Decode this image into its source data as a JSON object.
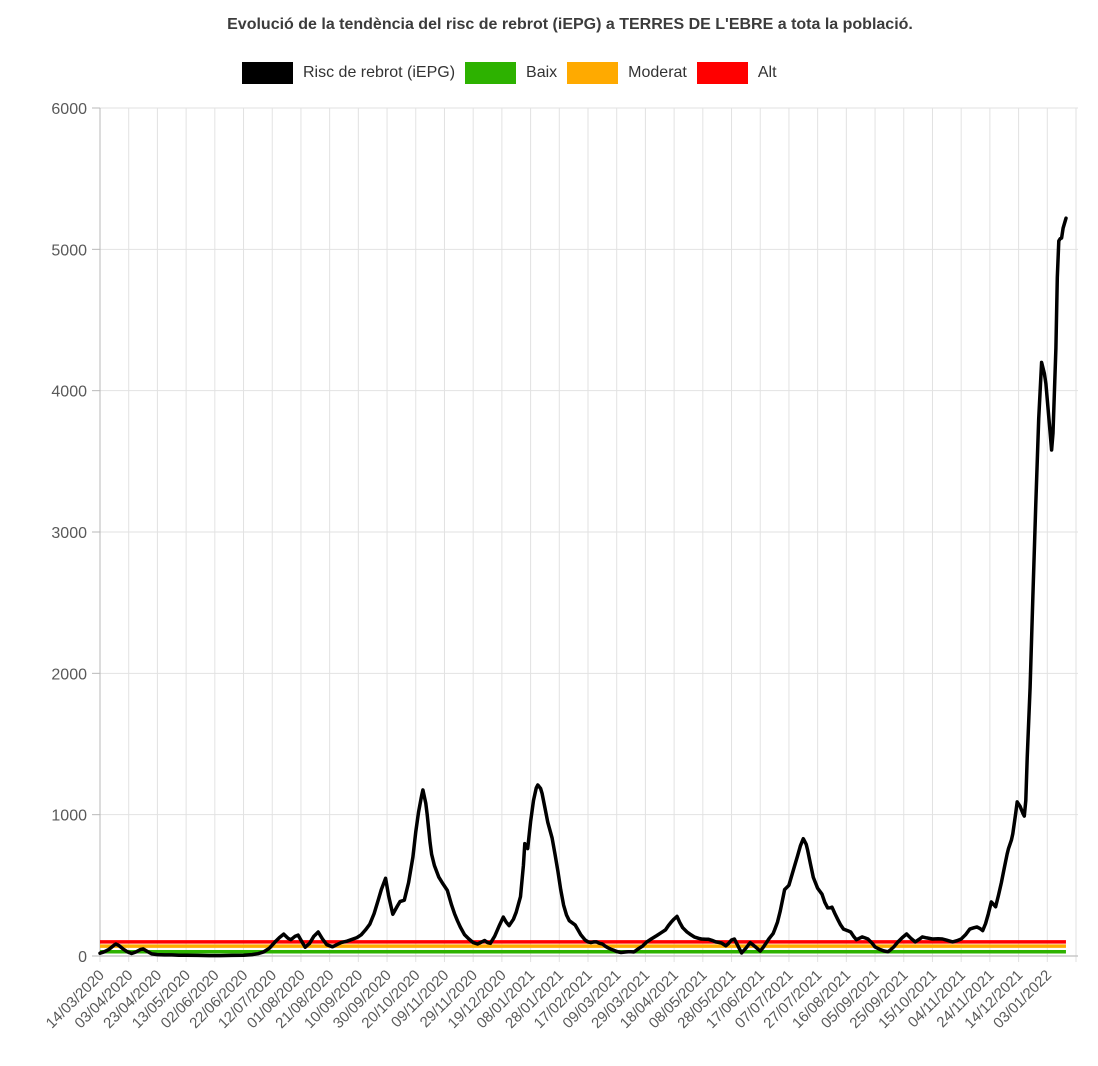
{
  "header": {
    "title": "Evolució de la tendència del risc de rebrot (iEPG) a TERRES DE L'EBRE a tota la població."
  },
  "legend": {
    "items": [
      {
        "label": "Risc de rebrot (iEPG)",
        "color": "#000000"
      },
      {
        "label": "Baix",
        "color": "#2db200"
      },
      {
        "label": "Moderat",
        "color": "#ffaa00"
      },
      {
        "label": "Alt",
        "color": "#ff0000"
      }
    ]
  },
  "chart_data": {
    "type": "line",
    "title": "Evolució de la tendència del risc de rebrot (iEPG) a TERRES DE L'EBRE a tota la població.",
    "xlabel": "",
    "ylabel": "",
    "ylim": [
      0,
      6000
    ],
    "y_ticks": [
      0,
      1000,
      2000,
      3000,
      4000,
      5000,
      6000
    ],
    "grid": true,
    "legend_position": "top",
    "x_tick_interval_days": 20,
    "x_domain_days": [
      0,
      680
    ],
    "x_tick_labels": [
      "14/03/2020",
      "03/04/2020",
      "23/04/2020",
      "13/05/2020",
      "02/06/2020",
      "22/06/2020",
      "12/07/2020",
      "01/08/2020",
      "21/08/2020",
      "10/09/2020",
      "30/09/2020",
      "20/10/2020",
      "09/11/2020",
      "29/11/2020",
      "19/12/2020",
      "08/01/2021",
      "28/01/2021",
      "17/02/2021",
      "09/03/2021",
      "29/03/2021",
      "18/04/2021",
      "08/05/2021",
      "28/05/2021",
      "17/06/2021",
      "07/07/2021",
      "27/07/2021",
      "16/08/2021",
      "05/09/2021",
      "25/09/2021",
      "15/10/2021",
      "04/11/2021",
      "24/11/2021",
      "14/12/2021",
      "03/01/2022"
    ],
    "thresholds": [
      {
        "label": "Baix",
        "value": 30,
        "color": "#2db200"
      },
      {
        "label": "Moderat",
        "value": 70,
        "color": "#ffaa00"
      },
      {
        "label": "Alt",
        "value": 100,
        "color": "#ff0000"
      }
    ],
    "series": [
      {
        "name": "Risc de rebrot (iEPG)",
        "color": "#000000",
        "points_day_value": [
          [
            0,
            20
          ],
          [
            3,
            30
          ],
          [
            6,
            45
          ],
          [
            9,
            70
          ],
          [
            11,
            85
          ],
          [
            13,
            75
          ],
          [
            16,
            50
          ],
          [
            19,
            30
          ],
          [
            22,
            18
          ],
          [
            25,
            28
          ],
          [
            28,
            45
          ],
          [
            30,
            50
          ],
          [
            33,
            32
          ],
          [
            36,
            15
          ],
          [
            40,
            10
          ],
          [
            45,
            8
          ],
          [
            50,
            8
          ],
          [
            55,
            6
          ],
          [
            60,
            5
          ],
          [
            68,
            4
          ],
          [
            76,
            3
          ],
          [
            84,
            3
          ],
          [
            92,
            4
          ],
          [
            100,
            6
          ],
          [
            106,
            10
          ],
          [
            110,
            16
          ],
          [
            114,
            28
          ],
          [
            118,
            55
          ],
          [
            122,
            100
          ],
          [
            125,
            130
          ],
          [
            128,
            155
          ],
          [
            131,
            125
          ],
          [
            133,
            115
          ],
          [
            136,
            140
          ],
          [
            138,
            148
          ],
          [
            141,
            95
          ],
          [
            143,
            62
          ],
          [
            146,
            90
          ],
          [
            149,
            140
          ],
          [
            152,
            170
          ],
          [
            155,
            120
          ],
          [
            158,
            80
          ],
          [
            162,
            65
          ],
          [
            165,
            80
          ],
          [
            168,
            95
          ],
          [
            172,
            105
          ],
          [
            175,
            115
          ],
          [
            179,
            130
          ],
          [
            182,
            150
          ],
          [
            185,
            185
          ],
          [
            188,
            225
          ],
          [
            191,
            300
          ],
          [
            194,
            400
          ],
          [
            196,
            470
          ],
          [
            199,
            550
          ],
          [
            201,
            430
          ],
          [
            204,
            295
          ],
          [
            207,
            350
          ],
          [
            209,
            385
          ],
          [
            212,
            395
          ],
          [
            215,
            520
          ],
          [
            218,
            700
          ],
          [
            220,
            880
          ],
          [
            222,
            1020
          ],
          [
            224,
            1130
          ],
          [
            225,
            1175
          ],
          [
            227,
            1080
          ],
          [
            228,
            1000
          ],
          [
            230,
            800
          ],
          [
            231,
            720
          ],
          [
            233,
            640
          ],
          [
            236,
            560
          ],
          [
            239,
            510
          ],
          [
            242,
            465
          ],
          [
            245,
            360
          ],
          [
            247,
            300
          ],
          [
            249,
            250
          ],
          [
            251,
            205
          ],
          [
            254,
            150
          ],
          [
            257,
            120
          ],
          [
            260,
            95
          ],
          [
            263,
            85
          ],
          [
            266,
            100
          ],
          [
            268,
            110
          ],
          [
            270,
            95
          ],
          [
            272,
            90
          ],
          [
            275,
            140
          ],
          [
            278,
            210
          ],
          [
            281,
            275
          ],
          [
            283,
            240
          ],
          [
            285,
            215
          ],
          [
            288,
            260
          ],
          [
            290,
            310
          ],
          [
            293,
            420
          ],
          [
            295,
            640
          ],
          [
            296,
            795
          ],
          [
            298,
            760
          ],
          [
            300,
            950
          ],
          [
            302,
            1100
          ],
          [
            304,
            1190
          ],
          [
            305,
            1210
          ],
          [
            307,
            1185
          ],
          [
            308,
            1150
          ],
          [
            310,
            1050
          ],
          [
            312,
            945
          ],
          [
            315,
            835
          ],
          [
            317,
            720
          ],
          [
            319,
            600
          ],
          [
            321,
            470
          ],
          [
            323,
            360
          ],
          [
            325,
            290
          ],
          [
            327,
            250
          ],
          [
            329,
            235
          ],
          [
            331,
            220
          ],
          [
            333,
            185
          ],
          [
            335,
            150
          ],
          [
            338,
            113
          ],
          [
            340,
            100
          ],
          [
            342,
            95
          ],
          [
            344,
            100
          ],
          [
            346,
            100
          ],
          [
            348,
            90
          ],
          [
            350,
            85
          ],
          [
            352,
            70
          ],
          [
            354,
            57
          ],
          [
            356,
            48
          ],
          [
            358,
            40
          ],
          [
            360,
            32
          ],
          [
            363,
            25
          ],
          [
            366,
            28
          ],
          [
            368,
            30
          ],
          [
            370,
            30
          ],
          [
            372,
            28
          ],
          [
            375,
            50
          ],
          [
            378,
            70
          ],
          [
            381,
            100
          ],
          [
            384,
            120
          ],
          [
            388,
            145
          ],
          [
            391,
            165
          ],
          [
            394,
            185
          ],
          [
            396,
            215
          ],
          [
            398,
            240
          ],
          [
            400,
            262
          ],
          [
            402,
            280
          ],
          [
            404,
            235
          ],
          [
            406,
            200
          ],
          [
            409,
            170
          ],
          [
            411,
            155
          ],
          [
            414,
            135
          ],
          [
            417,
            125
          ],
          [
            419,
            120
          ],
          [
            422,
            118
          ],
          [
            424,
            118
          ],
          [
            427,
            108
          ],
          [
            429,
            100
          ],
          [
            431,
            96
          ],
          [
            433,
            92
          ],
          [
            436,
            72
          ],
          [
            438,
            90
          ],
          [
            440,
            113
          ],
          [
            442,
            120
          ],
          [
            444,
            80
          ],
          [
            447,
            22
          ],
          [
            450,
            55
          ],
          [
            453,
            95
          ],
          [
            456,
            70
          ],
          [
            460,
            35
          ],
          [
            462,
            60
          ],
          [
            464,
            90
          ],
          [
            466,
            120
          ],
          [
            467,
            134
          ],
          [
            469,
            160
          ],
          [
            470,
            185
          ],
          [
            472,
            240
          ],
          [
            474,
            320
          ],
          [
            476,
            420
          ],
          [
            477,
            470
          ],
          [
            480,
            500
          ],
          [
            482,
            570
          ],
          [
            484,
            640
          ],
          [
            486,
            710
          ],
          [
            488,
            780
          ],
          [
            490,
            830
          ],
          [
            492,
            790
          ],
          [
            493,
            750
          ],
          [
            495,
            650
          ],
          [
            497,
            556
          ],
          [
            500,
            480
          ],
          [
            503,
            437
          ],
          [
            505,
            380
          ],
          [
            507,
            340
          ],
          [
            509,
            342
          ],
          [
            510,
            345
          ],
          [
            512,
            300
          ],
          [
            514,
            260
          ],
          [
            516,
            220
          ],
          [
            518,
            190
          ],
          [
            521,
            178
          ],
          [
            523,
            170
          ],
          [
            525,
            140
          ],
          [
            527,
            115
          ],
          [
            529,
            125
          ],
          [
            531,
            135
          ],
          [
            533,
            128
          ],
          [
            535,
            120
          ],
          [
            538,
            90
          ],
          [
            540,
            64
          ],
          [
            543,
            48
          ],
          [
            546,
            36
          ],
          [
            549,
            30
          ],
          [
            551,
            45
          ],
          [
            553,
            64
          ],
          [
            556,
            100
          ],
          [
            559,
            130
          ],
          [
            562,
            156
          ],
          [
            565,
            125
          ],
          [
            568,
            100
          ],
          [
            571,
            120
          ],
          [
            573,
            135
          ],
          [
            576,
            128
          ],
          [
            580,
            120
          ],
          [
            584,
            122
          ],
          [
            587,
            120
          ],
          [
            590,
            112
          ],
          [
            594,
            100
          ],
          [
            597,
            108
          ],
          [
            600,
            120
          ],
          [
            603,
            150
          ],
          [
            606,
            190
          ],
          [
            609,
            200
          ],
          [
            611,
            205
          ],
          [
            613,
            195
          ],
          [
            615,
            180
          ],
          [
            617,
            230
          ],
          [
            619,
            300
          ],
          [
            621,
            383
          ],
          [
            623,
            360
          ],
          [
            624,
            348
          ],
          [
            626,
            430
          ],
          [
            628,
            520
          ],
          [
            630,
            620
          ],
          [
            632,
            720
          ],
          [
            633,
            760
          ],
          [
            635,
            820
          ],
          [
            636,
            865
          ],
          [
            638,
            1010
          ],
          [
            639,
            1090
          ],
          [
            641,
            1060
          ],
          [
            643,
            1010
          ],
          [
            644,
            990
          ],
          [
            645,
            1100
          ],
          [
            646,
            1400
          ],
          [
            648,
            1900
          ],
          [
            650,
            2550
          ],
          [
            652,
            3200
          ],
          [
            654,
            3800
          ],
          [
            656,
            4200
          ],
          [
            658,
            4120
          ],
          [
            659,
            4050
          ],
          [
            661,
            3820
          ],
          [
            663,
            3580
          ],
          [
            664,
            3700
          ],
          [
            666,
            4300
          ],
          [
            667,
            4800
          ],
          [
            668,
            5060
          ],
          [
            669,
            5075
          ],
          [
            670,
            5080
          ],
          [
            671,
            5150
          ],
          [
            673,
            5220
          ]
        ]
      }
    ],
    "axis_colors": {
      "label": "#595959",
      "grid": "#e2e2e2",
      "axis": "#b8b8b8"
    }
  }
}
